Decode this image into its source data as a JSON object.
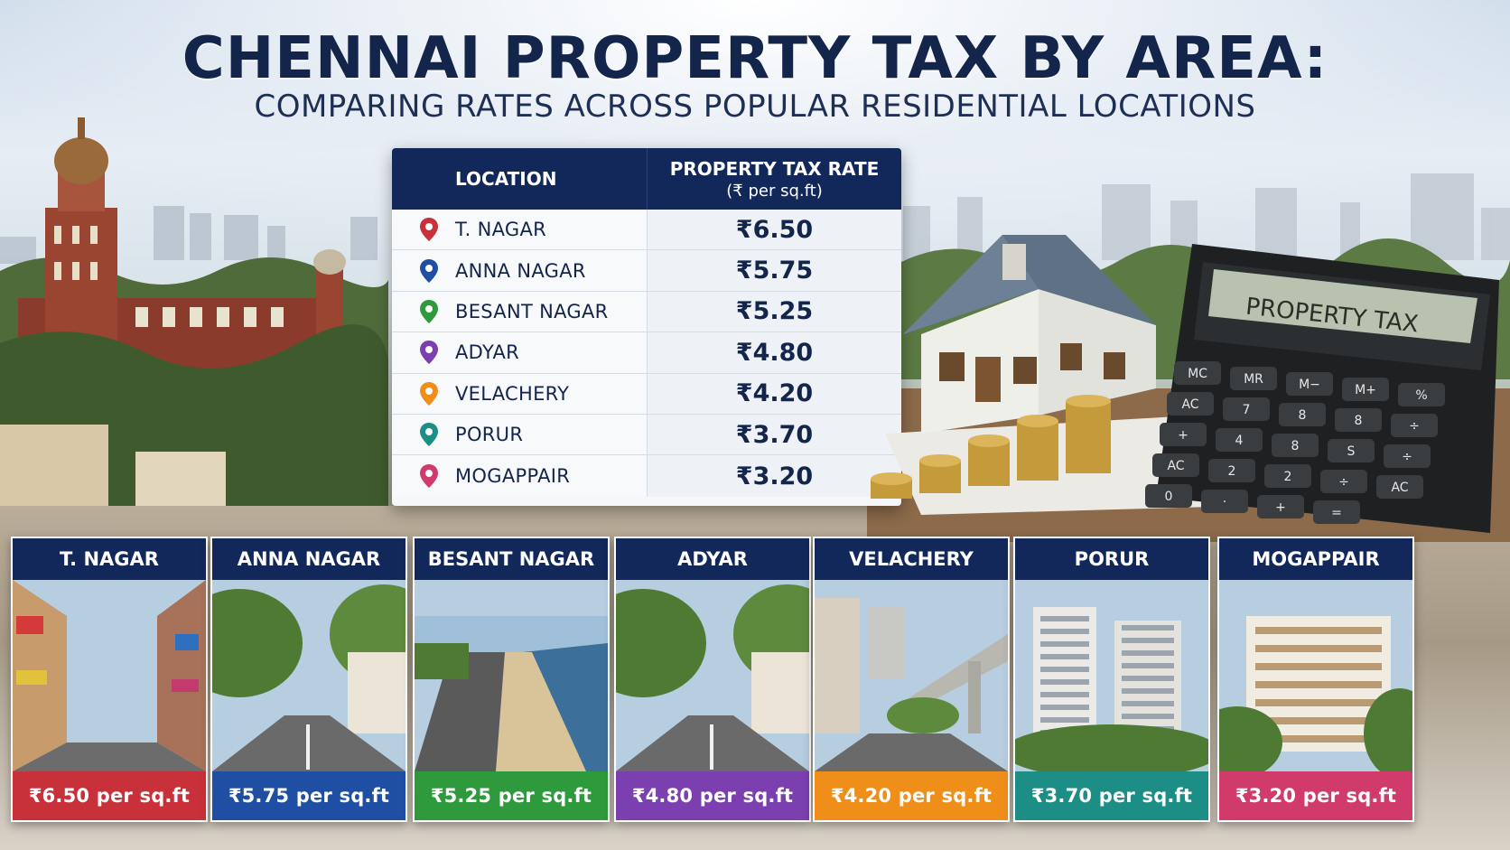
{
  "title": "CHENNAI PROPERTY TAX BY AREA:",
  "subtitle": "COMPARING RATES ACROSS POPULAR RESIDENTIAL LOCATIONS",
  "table": {
    "header_location": "LOCATION",
    "header_rate": "PROPERTY TAX RATE",
    "header_rate_unit": "(₹ per sq.ft)",
    "rows": [
      {
        "location": "T. NAGAR",
        "rate": "₹6.50",
        "pin_color": "#c8313a"
      },
      {
        "location": "ANNA NAGAR",
        "rate": "₹5.75",
        "pin_color": "#1f4fa3"
      },
      {
        "location": "BESANT NAGAR",
        "rate": "₹5.25",
        "pin_color": "#2e9a3c"
      },
      {
        "location": "ADYAR",
        "rate": "₹4.80",
        "pin_color": "#7b3fb0"
      },
      {
        "location": "VELACHERY",
        "rate": "₹4.20",
        "pin_color": "#ef8f1a"
      },
      {
        "location": "PORUR",
        "rate": "₹3.70",
        "pin_color": "#1c8e86"
      },
      {
        "location": "MOGAPPAIR",
        "rate": "₹3.20",
        "pin_color": "#d03b6b"
      }
    ]
  },
  "calculator_display": "PROPERTY TAX",
  "calculator_keys": [
    "MC",
    "MR",
    "M−",
    "M+",
    "%",
    "AC",
    "7",
    "8",
    "8",
    "÷",
    "+",
    "4",
    "8",
    "S",
    "÷",
    "AC",
    "2",
    "2",
    "÷",
    "AC",
    "0",
    "·",
    "+",
    "="
  ],
  "cards": [
    {
      "name": "T. NAGAR",
      "price": "₹6.50 per sq.ft",
      "color": "#c8313a",
      "scene": "street"
    },
    {
      "name": "ANNA NAGAR",
      "price": "₹5.75 per sq.ft",
      "color": "#1f4fa3",
      "scene": "avenue"
    },
    {
      "name": "BESANT NAGAR",
      "price": "₹5.25 per sq.ft",
      "color": "#2e9a3c",
      "scene": "beach"
    },
    {
      "name": "ADYAR",
      "price": "₹4.80 per sq.ft",
      "color": "#7b3fb0",
      "scene": "avenue"
    },
    {
      "name": "VELACHERY",
      "price": "₹4.20 per sq.ft",
      "color": "#ef8f1a",
      "scene": "metro"
    },
    {
      "name": "PORUR",
      "price": "₹3.70 per sq.ft",
      "color": "#1c8e86",
      "scene": "towers"
    },
    {
      "name": "MOGAPPAIR",
      "price": "₹3.20 per sq.ft",
      "color": "#d03b6b",
      "scene": "apartment"
    }
  ]
}
